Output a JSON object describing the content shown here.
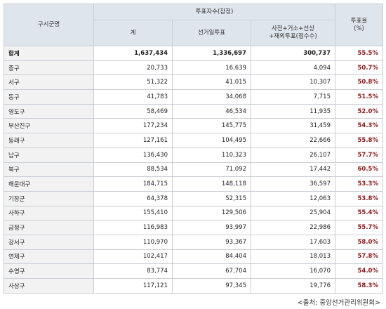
{
  "table": {
    "header": {
      "region": "구시군명",
      "group": "투표자수(잠정)",
      "columns": [
        "계",
        "선거일투표",
        [
          "사전+거소+선상",
          "+재외투표(접수수)"
        ]
      ],
      "rate": [
        "투표율",
        "(%)"
      ]
    },
    "rows": [
      [
        "합계",
        "1,637,434",
        "1,336,697",
        "300,737",
        "55.5%"
      ],
      [
        "중구",
        "20,733",
        "16,639",
        "4,094",
        "50.7%"
      ],
      [
        "서구",
        "51,322",
        "41,015",
        "10,307",
        "50.8%"
      ],
      [
        "동구",
        "41,783",
        "34,068",
        "7,715",
        "51.5%"
      ],
      [
        "영도구",
        "58,469",
        "46,534",
        "11,935",
        "52.0%"
      ],
      [
        "부산진구",
        "177,234",
        "145,775",
        "31,459",
        "54.3%"
      ],
      [
        "동래구",
        "127,161",
        "104,495",
        "22,666",
        "55.8%"
      ],
      [
        "남구",
        "136,430",
        "110,323",
        "26,107",
        "57.7%"
      ],
      [
        "북구",
        "88,534",
        "71,092",
        "17,442",
        "60.5%"
      ],
      [
        "해운대구",
        "184,715",
        "148,118",
        "36,597",
        "53.3%"
      ],
      [
        "기장군",
        "64,378",
        "52,315",
        "12,063",
        "53.8%"
      ],
      [
        "사하구",
        "155,410",
        "129,506",
        "25,904",
        "55.4%"
      ],
      [
        "금정구",
        "116,983",
        "93,997",
        "22,986",
        "55.7%"
      ],
      [
        "강서구",
        "110,970",
        "93,367",
        "17,603",
        "58.0%"
      ],
      [
        "연제구",
        "102,417",
        "84,404",
        "18,013",
        "57.8%"
      ],
      [
        "수영구",
        "83,774",
        "67,704",
        "16,070",
        "54.0%"
      ],
      [
        "사상구",
        "117,121",
        "97,345",
        "19,776",
        "58.3%"
      ]
    ]
  },
  "source": "<출처: 중앙선거관리위원회>"
}
